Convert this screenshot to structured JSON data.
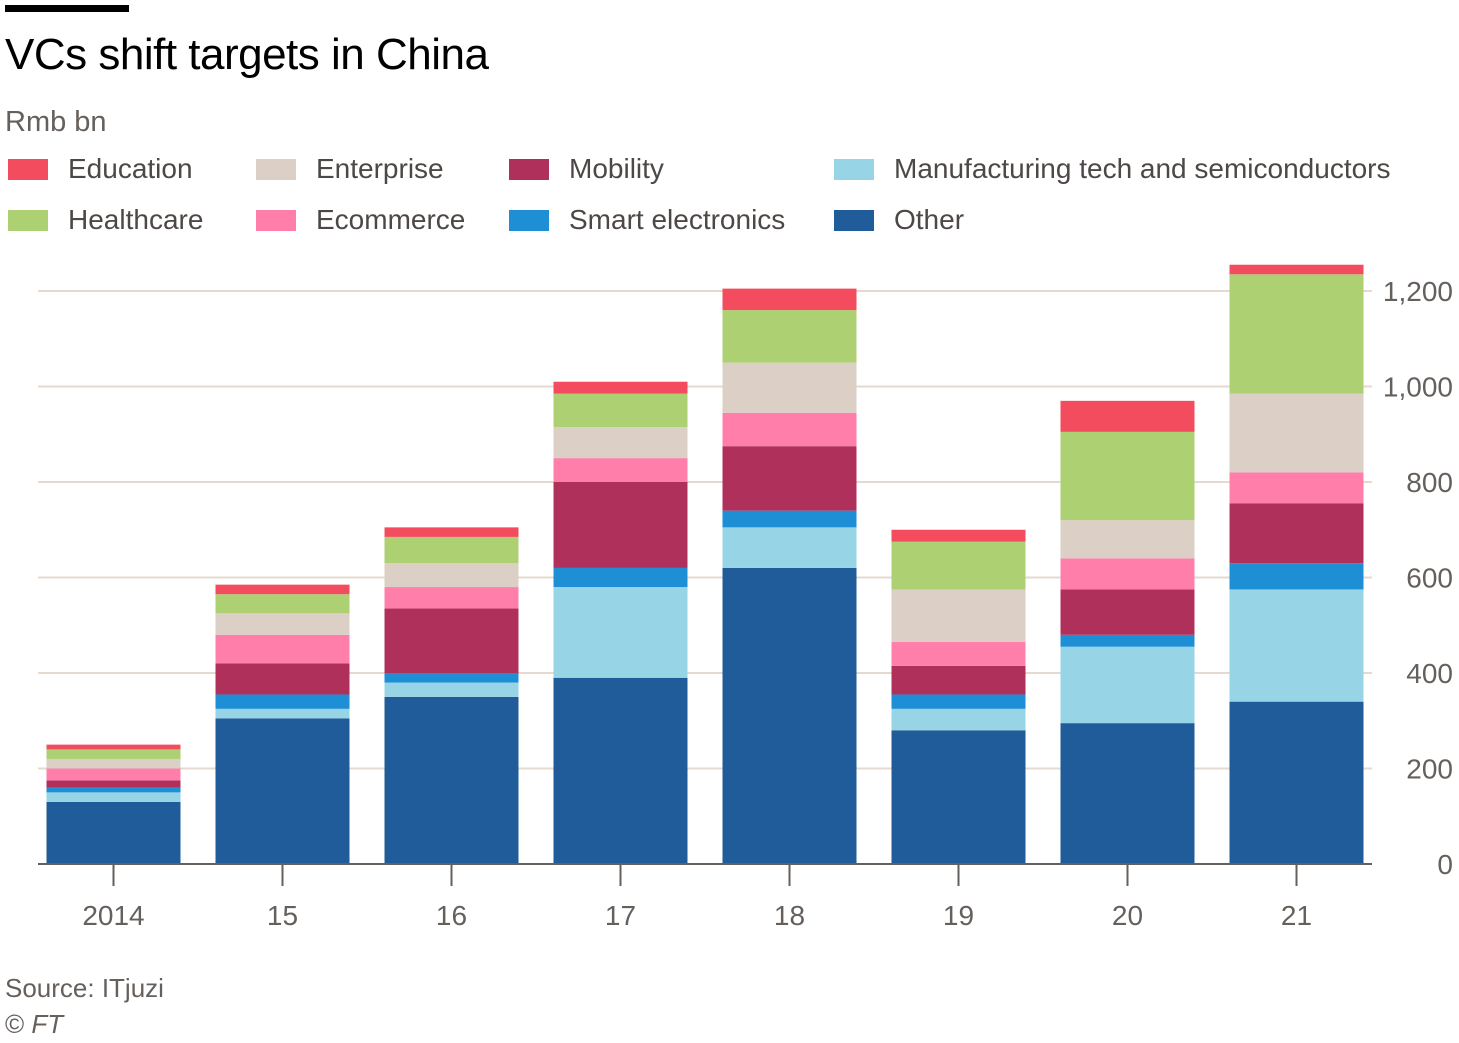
{
  "chart_data": {
    "type": "bar",
    "stacked": true,
    "title": "VCs shift targets in China",
    "subtitle": "Rmb bn",
    "categories": [
      "2014",
      "15",
      "16",
      "17",
      "18",
      "19",
      "20",
      "21"
    ],
    "series": [
      {
        "name": "Other",
        "color": "#1f5c99",
        "values": [
          130,
          305,
          350,
          390,
          620,
          280,
          295,
          340
        ]
      },
      {
        "name": "Manufacturing tech and semiconductors",
        "color": "#96d4e6",
        "values": [
          20,
          20,
          30,
          190,
          85,
          45,
          160,
          235
        ]
      },
      {
        "name": "Smart electronics",
        "color": "#1e8fd5",
        "values": [
          10,
          30,
          20,
          40,
          35,
          30,
          25,
          55
        ]
      },
      {
        "name": "Mobility",
        "color": "#b0305c",
        "values": [
          15,
          65,
          135,
          180,
          135,
          60,
          95,
          125
        ]
      },
      {
        "name": "Ecommerce",
        "color": "#ff7faa",
        "values": [
          25,
          60,
          45,
          50,
          70,
          50,
          65,
          65
        ]
      },
      {
        "name": "Enterprise",
        "color": "#dbcfc6",
        "values": [
          20,
          45,
          50,
          65,
          105,
          110,
          80,
          165
        ]
      },
      {
        "name": "Healthcare",
        "color": "#add073",
        "values": [
          20,
          40,
          55,
          70,
          110,
          100,
          185,
          250
        ]
      },
      {
        "name": "Education",
        "color": "#f24c5e",
        "values": [
          10,
          20,
          20,
          25,
          45,
          25,
          65,
          20
        ]
      }
    ],
    "ylim": [
      0,
      1260
    ],
    "yticks": [
      0,
      200,
      400,
      600,
      800,
      1000,
      1200
    ],
    "ytick_labels": [
      "0",
      "200",
      "400",
      "600",
      "800",
      "1,000",
      "1,200"
    ],
    "y_axis_side": "right",
    "grid": true,
    "legend_placement": "top",
    "xlabel": "",
    "ylabel": ""
  },
  "legend": {
    "items": [
      {
        "label": "Education",
        "color": "#f24c5e"
      },
      {
        "label": "Enterprise",
        "color": "#dbcfc6"
      },
      {
        "label": "Mobility",
        "color": "#b0305c"
      },
      {
        "label": "Manufacturing tech and semiconductors",
        "color": "#96d4e6"
      },
      {
        "label": "Healthcare",
        "color": "#add073"
      },
      {
        "label": "Ecommerce",
        "color": "#ff7faa"
      },
      {
        "label": "Smart electronics",
        "color": "#1e8fd5"
      },
      {
        "label": "Other",
        "color": "#1f5c99"
      }
    ]
  },
  "footer": {
    "source": "Source: ITjuzi",
    "copyright_symbol": "©",
    "copyright_brand": "FT"
  }
}
